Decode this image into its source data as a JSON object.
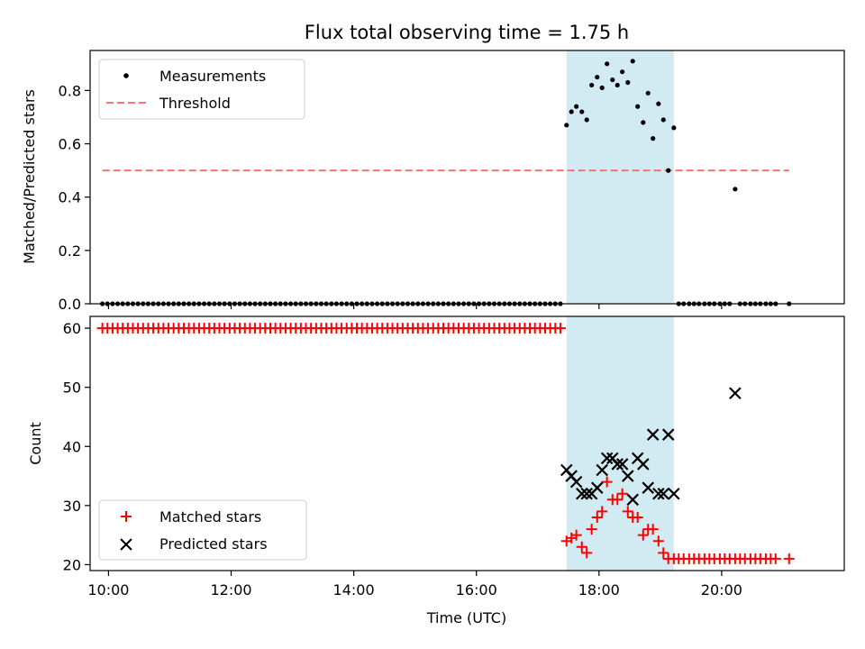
{
  "chart_data": [
    {
      "type": "scatter",
      "title": "Flux total observing time = 1.75 h",
      "xlabel": "",
      "ylabel": "Matched/Predicted stars",
      "ylim": [
        0,
        0.95
      ],
      "xlim": [
        9.7,
        22.0
      ],
      "x_ticks": [
        10,
        12,
        14,
        16,
        18,
        20
      ],
      "x_tick_labels": [],
      "y_ticks": [
        0,
        0.2,
        0.4,
        0.6,
        0.8
      ],
      "y_tick_labels": [
        "0.0",
        "0.2",
        "0.4",
        "0.6",
        "0.8"
      ],
      "legend": {
        "placement": "top-left",
        "entries": [
          "Measurements",
          "Threshold"
        ]
      },
      "shaded_span": {
        "x": [
          17.47,
          19.22
        ],
        "color": "#add8e6"
      },
      "threshold": {
        "name": "Threshold",
        "y": 0.5,
        "x": [
          9.9,
          21.1
        ],
        "color": "#ff7070",
        "style": "dashed"
      },
      "series": [
        {
          "name": "Measurements",
          "color": "#000000",
          "zero_run": {
            "x_start": 9.9,
            "x_end": 17.4,
            "step": 0.083,
            "y": 0
          },
          "points": [
            [
              17.47,
              0.67
            ],
            [
              17.55,
              0.72
            ],
            [
              17.63,
              0.74
            ],
            [
              17.72,
              0.72
            ],
            [
              17.8,
              0.69
            ],
            [
              17.88,
              0.82
            ],
            [
              17.97,
              0.85
            ],
            [
              18.05,
              0.81
            ],
            [
              18.13,
              0.9
            ],
            [
              18.22,
              0.84
            ],
            [
              18.3,
              0.82
            ],
            [
              18.38,
              0.87
            ],
            [
              18.47,
              0.83
            ],
            [
              18.55,
              0.91
            ],
            [
              18.63,
              0.74
            ],
            [
              18.72,
              0.68
            ],
            [
              18.8,
              0.79
            ],
            [
              18.88,
              0.62
            ],
            [
              18.97,
              0.75
            ],
            [
              19.05,
              0.69
            ],
            [
              19.13,
              0.5
            ],
            [
              19.22,
              0.66
            ],
            [
              20.22,
              0.43
            ],
            [
              19.3,
              0
            ],
            [
              19.38,
              0
            ],
            [
              19.47,
              0
            ],
            [
              19.55,
              0
            ],
            [
              19.63,
              0
            ],
            [
              19.72,
              0
            ],
            [
              19.8,
              0
            ],
            [
              19.88,
              0
            ],
            [
              19.97,
              0
            ],
            [
              20.05,
              0
            ],
            [
              20.13,
              0
            ],
            [
              20.3,
              0
            ],
            [
              20.38,
              0
            ],
            [
              20.47,
              0
            ],
            [
              20.55,
              0
            ],
            [
              20.63,
              0
            ],
            [
              20.72,
              0
            ],
            [
              20.8,
              0
            ],
            [
              20.88,
              0
            ],
            [
              21.1,
              0
            ]
          ]
        }
      ]
    },
    {
      "type": "scatter",
      "title": "",
      "xlabel": "Time (UTC)",
      "ylabel": "Count",
      "ylim": [
        19,
        62
      ],
      "xlim": [
        9.7,
        22.0
      ],
      "x_ticks": [
        10,
        12,
        14,
        16,
        18,
        20
      ],
      "x_tick_labels": [
        "10:00",
        "12:00",
        "14:00",
        "16:00",
        "18:00",
        "20:00"
      ],
      "y_ticks": [
        20,
        30,
        40,
        50,
        60
      ],
      "y_tick_labels": [
        "20",
        "30",
        "40",
        "50",
        "60"
      ],
      "legend": {
        "placement": "bottom-left",
        "entries": [
          "Matched stars",
          "Predicted stars"
        ]
      },
      "shaded_span": {
        "x": [
          17.47,
          19.22
        ],
        "color": "#add8e6"
      },
      "series": [
        {
          "name": "Matched stars",
          "color": "#ff0000",
          "marker": "plus",
          "constant_run": {
            "x_start": 9.9,
            "x_end": 17.4,
            "step": 0.083,
            "y": 60
          },
          "points": [
            [
              17.47,
              24
            ],
            [
              17.55,
              24.5
            ],
            [
              17.63,
              25
            ],
            [
              17.72,
              23
            ],
            [
              17.8,
              22
            ],
            [
              17.88,
              26
            ],
            [
              17.97,
              28
            ],
            [
              18.05,
              29
            ],
            [
              18.13,
              34
            ],
            [
              18.22,
              31
            ],
            [
              18.3,
              31
            ],
            [
              18.38,
              32
            ],
            [
              18.47,
              29
            ],
            [
              18.55,
              28
            ],
            [
              18.63,
              28
            ],
            [
              18.72,
              25
            ],
            [
              18.8,
              26
            ],
            [
              18.88,
              26
            ],
            [
              18.97,
              24
            ],
            [
              19.05,
              22
            ],
            [
              19.13,
              21
            ],
            [
              19.22,
              21
            ],
            [
              19.3,
              21
            ],
            [
              19.38,
              21
            ],
            [
              19.47,
              21
            ],
            [
              19.55,
              21
            ],
            [
              19.63,
              21
            ],
            [
              19.72,
              21
            ],
            [
              19.8,
              21
            ],
            [
              19.88,
              21
            ],
            [
              19.97,
              21
            ],
            [
              20.05,
              21
            ],
            [
              20.13,
              21
            ],
            [
              20.22,
              21
            ],
            [
              20.3,
              21
            ],
            [
              20.38,
              21
            ],
            [
              20.47,
              21
            ],
            [
              20.55,
              21
            ],
            [
              20.63,
              21
            ],
            [
              20.72,
              21
            ],
            [
              20.8,
              21
            ],
            [
              20.88,
              21
            ],
            [
              21.1,
              21
            ]
          ]
        },
        {
          "name": "Predicted stars",
          "color": "#000000",
          "marker": "x",
          "points": [
            [
              17.47,
              36
            ],
            [
              17.55,
              35
            ],
            [
              17.63,
              34
            ],
            [
              17.72,
              32
            ],
            [
              17.8,
              32
            ],
            [
              17.88,
              32
            ],
            [
              17.97,
              33
            ],
            [
              18.05,
              36
            ],
            [
              18.13,
              38
            ],
            [
              18.22,
              38
            ],
            [
              18.3,
              37
            ],
            [
              18.38,
              37
            ],
            [
              18.47,
              35
            ],
            [
              18.55,
              31
            ],
            [
              18.63,
              38
            ],
            [
              18.72,
              37
            ],
            [
              18.8,
              33
            ],
            [
              18.88,
              42
            ],
            [
              18.97,
              32
            ],
            [
              19.05,
              32
            ],
            [
              19.13,
              42
            ],
            [
              19.22,
              32
            ],
            [
              20.22,
              49
            ]
          ]
        }
      ]
    }
  ]
}
